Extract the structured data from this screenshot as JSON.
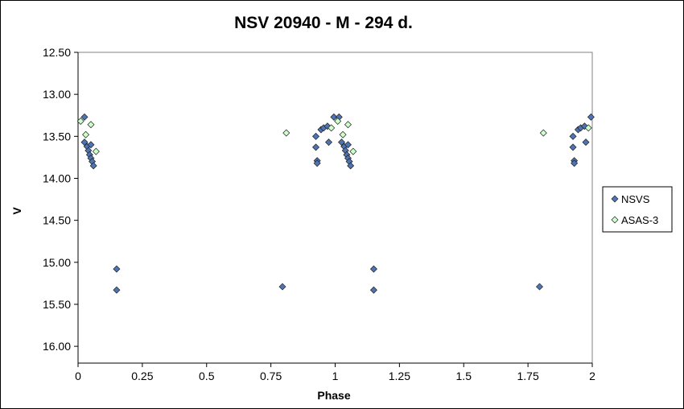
{
  "chart_data": {
    "type": "scatter",
    "title": "NSV 20940 - M - 294 d.",
    "xlabel": "Phase",
    "ylabel": "V",
    "xlim": [
      0,
      2
    ],
    "ylim": [
      16.2,
      12.5
    ],
    "y_inverted": true,
    "x_ticks": [
      0,
      0.25,
      0.5,
      0.75,
      1,
      1.25,
      1.5,
      1.75,
      2
    ],
    "x_tick_labels": [
      "0",
      "0.25",
      "0.5",
      "0.75",
      "1",
      "1.25",
      "1.5",
      "1.75",
      "2"
    ],
    "y_ticks": [
      12.5,
      13.0,
      13.5,
      14.0,
      14.5,
      15.0,
      15.5,
      16.0
    ],
    "y_tick_labels": [
      "12.50",
      "13.00",
      "13.50",
      "14.00",
      "14.50",
      "15.00",
      "15.50",
      "16.00"
    ],
    "grid": false,
    "legend_position": "right",
    "series": [
      {
        "name": "NSVS",
        "color": "#4F74B4",
        "marker": "diamond",
        "points": [
          [
            0.025,
            13.27
          ],
          [
            0.025,
            13.57
          ],
          [
            0.035,
            13.62
          ],
          [
            0.04,
            13.67
          ],
          [
            0.045,
            13.72
          ],
          [
            0.05,
            13.6
          ],
          [
            0.05,
            13.76
          ],
          [
            0.055,
            13.8
          ],
          [
            0.06,
            13.85
          ],
          [
            0.15,
            15.08
          ],
          [
            0.15,
            15.33
          ],
          [
            0.795,
            15.29
          ],
          [
            0.925,
            13.5
          ],
          [
            0.925,
            13.63
          ],
          [
            0.93,
            13.79
          ],
          [
            0.93,
            13.82
          ],
          [
            0.945,
            13.42
          ],
          [
            0.955,
            13.4
          ],
          [
            0.97,
            13.38
          ],
          [
            0.975,
            13.57
          ],
          [
            0.995,
            13.27
          ],
          [
            1.015,
            13.27
          ],
          [
            1.025,
            13.57
          ],
          [
            1.035,
            13.62
          ],
          [
            1.04,
            13.67
          ],
          [
            1.045,
            13.72
          ],
          [
            1.05,
            13.6
          ],
          [
            1.05,
            13.76
          ],
          [
            1.055,
            13.8
          ],
          [
            1.06,
            13.85
          ],
          [
            1.15,
            15.08
          ],
          [
            1.15,
            15.33
          ],
          [
            1.795,
            15.29
          ],
          [
            1.925,
            13.5
          ],
          [
            1.925,
            13.63
          ],
          [
            1.93,
            13.79
          ],
          [
            1.93,
            13.82
          ],
          [
            1.945,
            13.42
          ],
          [
            1.955,
            13.4
          ],
          [
            1.97,
            13.38
          ],
          [
            1.975,
            13.57
          ],
          [
            1.995,
            13.27
          ]
        ]
      },
      {
        "name": "ASAS-3",
        "color": "#CCFFCC",
        "marker": "diamond",
        "points": [
          [
            0.01,
            13.32
          ],
          [
            0.03,
            13.48
          ],
          [
            0.05,
            13.36
          ],
          [
            0.07,
            13.68
          ],
          [
            0.81,
            13.46
          ],
          [
            0.985,
            13.4
          ],
          [
            1.01,
            13.32
          ],
          [
            1.03,
            13.48
          ],
          [
            1.05,
            13.36
          ],
          [
            1.07,
            13.68
          ],
          [
            1.81,
            13.46
          ],
          [
            1.985,
            13.4
          ]
        ]
      }
    ]
  }
}
